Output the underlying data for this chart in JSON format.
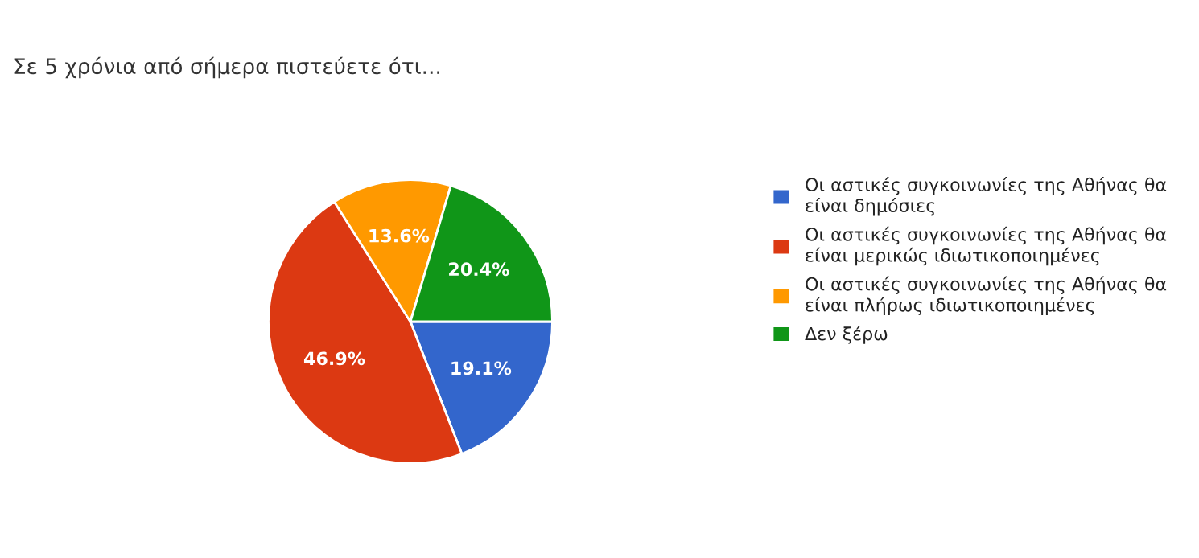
{
  "chart_data": {
    "type": "pie",
    "title": "Σε 5 χρόνια από σήμερα πιστεύετε ότι...",
    "categories": [
      "Οι αστικές συγκοινωνίες της Αθήνας θα είναι δημόσιες",
      "Οι αστικές συγκοινωνίες της Αθήνας θα είναι μερικώς ιδιωτικοποιημένες",
      "Οι αστικές συγκοινωνίες της Αθήνας θα είναι πλήρως ιδιωτικοποιημένες",
      "Δεν ξέρω"
    ],
    "values": [
      19.1,
      46.9,
      13.6,
      20.4
    ],
    "colors": [
      "#3366cc",
      "#dc3912",
      "#ff9900",
      "#109618"
    ],
    "value_labels": [
      "19.1%",
      "46.9%",
      "13.6%",
      "20.4%"
    ],
    "legend": "right"
  }
}
